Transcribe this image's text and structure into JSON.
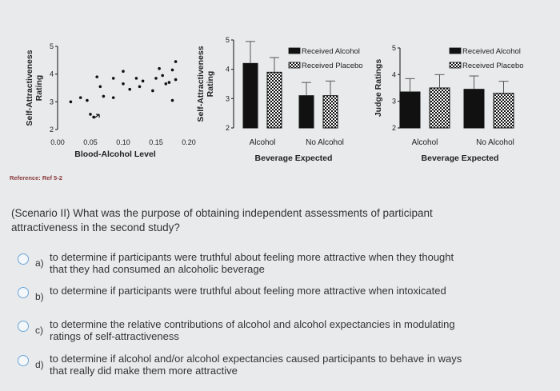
{
  "reference": "Reference: Ref 5-2",
  "question": "(Scenario II) What was the purpose of obtaining independent assessments of participant attractiveness in the second study?",
  "options": [
    {
      "letter": "a)",
      "text": "to determine if participants were truthful about feeling more attractive when they thought that they had consumed an alcoholic beverage"
    },
    {
      "letter": "b)",
      "text": "to determine if participants were truthful about feeling more attractive when intoxicated"
    },
    {
      "letter": "c)",
      "text": "to determine the relative contributions of alcohol and alcohol expectancies in modulating ratings of self-attractiveness"
    },
    {
      "letter": "d)",
      "text": "to determine if alcohol and/or alcohol expectancies caused participants to behave in ways that really did make them more attractive"
    }
  ],
  "colors": {
    "bar_alcohol": "#111111",
    "bar_placebo_pattern": "checkered",
    "radio_border": "#6aa6d8"
  },
  "chart_data": [
    {
      "type": "scatter",
      "xlabel": "Blood-Alcohol Level",
      "ylabel": "Self-Attractiveness Rating",
      "xlim": [
        0,
        0.2
      ],
      "ylim": [
        2,
        5
      ],
      "xticks": [
        "0.00",
        "0.05",
        "0.10",
        "0.15",
        "0.20"
      ],
      "yticks": [
        "2",
        "3",
        "4",
        "5"
      ],
      "points": [
        [
          0.02,
          3.0
        ],
        [
          0.035,
          3.15
        ],
        [
          0.045,
          3.05
        ],
        [
          0.05,
          2.55
        ],
        [
          0.055,
          2.45
        ],
        [
          0.06,
          3.9
        ],
        [
          0.065,
          3.55
        ],
        [
          0.07,
          3.2
        ],
        [
          0.085,
          3.15
        ],
        [
          0.085,
          3.85
        ],
        [
          0.1,
          3.65
        ],
        [
          0.1,
          4.1
        ],
        [
          0.11,
          3.45
        ],
        [
          0.12,
          3.85
        ],
        [
          0.125,
          3.55
        ],
        [
          0.13,
          3.75
        ],
        [
          0.145,
          3.4
        ],
        [
          0.15,
          3.85
        ],
        [
          0.155,
          4.2
        ],
        [
          0.16,
          3.95
        ],
        [
          0.165,
          3.65
        ],
        [
          0.17,
          3.7
        ],
        [
          0.175,
          4.15
        ],
        [
          0.175,
          3.05
        ],
        [
          0.18,
          4.45
        ],
        [
          0.18,
          3.8
        ]
      ]
    },
    {
      "type": "bar",
      "xlabel": "Beverage Expected",
      "ylabel": "Self-Attractiveness Rating",
      "categories": [
        "Alcohol",
        "No Alcohol"
      ],
      "ylim": [
        2,
        5
      ],
      "yticks": [
        "2",
        "3",
        "4",
        "5"
      ],
      "legend_placement": "top-right",
      "series": [
        {
          "name": "Received Alcohol",
          "values": [
            4.2,
            3.1
          ],
          "errors": [
            0.75,
            0.45
          ]
        },
        {
          "name": "Received Placebo",
          "values": [
            3.9,
            3.1
          ],
          "errors": [
            0.5,
            0.5
          ]
        }
      ]
    },
    {
      "type": "bar",
      "xlabel": "Beverage Expected",
      "ylabel": "Judge Ratings",
      "categories": [
        "Alcohol",
        "No Alcohol"
      ],
      "ylim": [
        2,
        5
      ],
      "yticks": [
        "2",
        "3",
        "4",
        "5"
      ],
      "legend_placement": "top-right",
      "series": [
        {
          "name": "Received Alcohol",
          "values": [
            3.35,
            3.45
          ],
          "errors": [
            0.5,
            0.5
          ]
        },
        {
          "name": "Received Placebo",
          "values": [
            3.5,
            3.3
          ],
          "errors": [
            0.5,
            0.45
          ]
        }
      ]
    }
  ]
}
